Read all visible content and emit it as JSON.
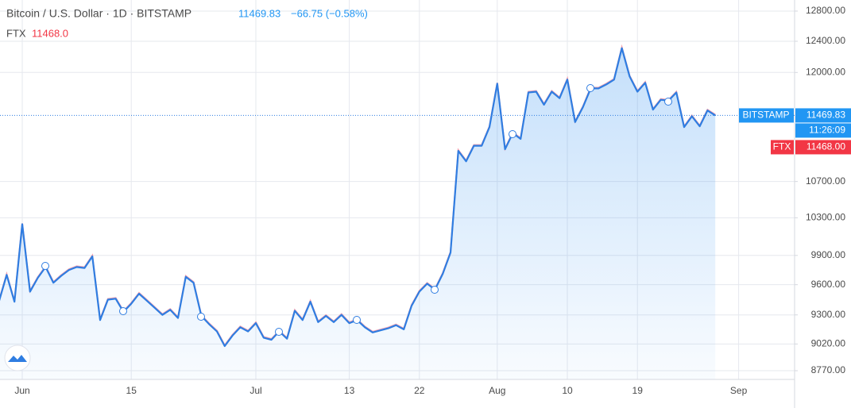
{
  "chart_data": {
    "type": "area",
    "header": {
      "title": "Bitcoin / U.S. Dollar · 1D · BITSTAMP",
      "last": "11469.83",
      "change": "−66.75 (−0.58%)",
      "compare_name": "FTX",
      "compare_last": "11468.0"
    },
    "categories": [
      null,
      null,
      null,
      "Jun",
      null,
      null,
      null,
      null,
      null,
      null,
      null,
      null,
      null,
      null,
      null,
      null,
      null,
      "15",
      null,
      null,
      null,
      null,
      null,
      null,
      null,
      null,
      null,
      null,
      null,
      null,
      null,
      null,
      null,
      "Jul",
      null,
      null,
      null,
      null,
      null,
      null,
      null,
      null,
      null,
      null,
      null,
      "13",
      null,
      null,
      null,
      null,
      null,
      null,
      null,
      null,
      "22",
      null,
      null,
      null,
      null,
      null,
      null,
      null,
      null,
      null,
      "Aug",
      null,
      null,
      null,
      null,
      null,
      null,
      null,
      null,
      "10",
      null,
      null,
      null,
      null,
      null,
      null,
      null,
      null,
      "19",
      null,
      null,
      null,
      null,
      null,
      null,
      null,
      null,
      null,
      null,
      null,
      null,
      "Sep"
    ],
    "series": [
      {
        "name": "BITSTAMP",
        "color": "#2f7de1",
        "values": [
          9430,
          9700,
          9430,
          10230,
          9530,
          9670,
          9780,
          9620,
          9690,
          9750,
          9780,
          9770,
          9890,
          9250,
          9450,
          9460,
          9330,
          9410,
          9510,
          9440,
          9370,
          9300,
          9350,
          9270,
          9680,
          9620,
          9290,
          9210,
          9140,
          9000,
          9100,
          9180,
          9140,
          9220,
          9080,
          9060,
          9140,
          9070,
          9340,
          9250,
          9430,
          9230,
          9290,
          9230,
          9300,
          9220,
          9250,
          9180,
          9130,
          9150,
          9170,
          9200,
          9160,
          9390,
          9530,
          9610,
          9550,
          9710,
          9930,
          11050,
          10930,
          11110,
          11110,
          11330,
          11860,
          11070,
          11260,
          11190,
          11750,
          11760,
          11600,
          11760,
          11680,
          11910,
          11390,
          11570,
          11800,
          11800,
          11850,
          11910,
          12310,
          11950,
          11760,
          11870,
          11540,
          11660,
          11650,
          11750,
          11330,
          11460,
          11340,
          11530,
          11469.83,
          null,
          null,
          null
        ]
      }
    ],
    "ylim": [
      8690,
      12950
    ],
    "log_y": true,
    "yticks": [
      {
        "value": 8770,
        "label": "8770.00"
      },
      {
        "value": 9020,
        "label": "9020.00"
      },
      {
        "value": 9300,
        "label": "9300.00"
      },
      {
        "value": 9600,
        "label": "9600.00"
      },
      {
        "value": 9900,
        "label": "9900.00"
      },
      {
        "value": 10300,
        "label": "10300.00"
      },
      {
        "value": 10700,
        "label": "10700.00"
      },
      {
        "value": 12000,
        "label": "12000.00"
      },
      {
        "value": 12400,
        "label": "12400.00"
      },
      {
        "value": 12800,
        "label": "12800.00"
      }
    ],
    "grid": true,
    "last_price": 11469.83,
    "countdown": "11:26:09",
    "compare_tag": {
      "name": "FTX",
      "value": 11468,
      "label": "11468.00",
      "color": "#f23645"
    }
  }
}
